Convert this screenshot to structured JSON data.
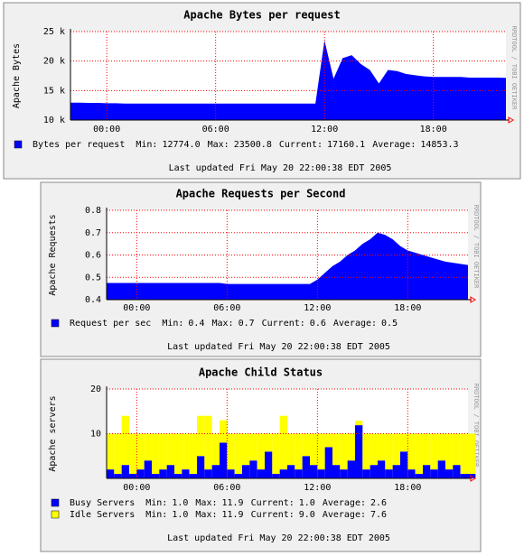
{
  "chart_data": [
    {
      "type": "area",
      "title": "Apache Bytes per request",
      "y_label": "Apache Bytes",
      "watermark": "RRDTOOL / TOBI OETIKER",
      "footer": "Last updated Fri May 20 22:00:38 EDT 2005",
      "x": [
        -2,
        -1.5,
        -1,
        -0.5,
        0,
        0.5,
        1,
        1.5,
        2,
        2.5,
        3,
        3.5,
        4,
        4.5,
        5,
        5.5,
        6,
        6.5,
        7,
        7.5,
        8,
        8.5,
        9,
        9.5,
        10,
        10.5,
        11,
        11.5,
        12,
        12.5,
        13,
        13.5,
        14,
        14.5,
        15,
        15.5,
        16,
        16.5,
        17,
        17.5,
        18,
        18.5,
        19,
        19.5,
        20,
        20.5,
        21,
        21.5,
        22
      ],
      "xlim": [
        -2,
        22
      ],
      "xticks": [
        {
          "value": 0,
          "label": "00:00"
        },
        {
          "value": 6,
          "label": "06:00"
        },
        {
          "value": 12,
          "label": "12:00"
        },
        {
          "value": 18,
          "label": "18:00"
        }
      ],
      "ylim": [
        10000,
        25000
      ],
      "yticks": [
        {
          "value": 10000,
          "label": "10 k"
        },
        {
          "value": 15000,
          "label": "15 k"
        },
        {
          "value": 20000,
          "label": "20 k"
        },
        {
          "value": 25000,
          "label": "25 k"
        }
      ],
      "grid": true,
      "series": [
        {
          "name": "Bytes per request",
          "color": "#0000ff",
          "values": [
            12950,
            12950,
            12900,
            12900,
            12850,
            12850,
            12800,
            12800,
            12800,
            12800,
            12800,
            12800,
            12800,
            12800,
            12800,
            12800,
            12800,
            12800,
            12800,
            12800,
            12800,
            12800,
            12800,
            12800,
            12800,
            12800,
            12800,
            12800,
            23500,
            17000,
            20500,
            21000,
            19500,
            18500,
            16200,
            18500,
            18300,
            17800,
            17600,
            17400,
            17300,
            17300,
            17300,
            17300,
            17200,
            17200,
            17200,
            17200,
            17160
          ],
          "stats": [
            [
              "Min:",
              "12774.0"
            ],
            [
              "Max:",
              "23500.8"
            ],
            [
              "Current:",
              "17160.1"
            ],
            [
              "Average:",
              "14853.3"
            ]
          ]
        }
      ]
    },
    {
      "type": "area",
      "title": "Apache Requests per Second",
      "y_label": "Apache Requests",
      "watermark": "RRDTOOL / TOBI OETIKER",
      "footer": "Last updated Fri May 20 22:00:38 EDT 2005",
      "x": [
        -2,
        -1.5,
        -1,
        -0.5,
        0,
        0.5,
        1,
        1.5,
        2,
        2.5,
        3,
        3.5,
        4,
        4.5,
        5,
        5.5,
        6,
        6.5,
        7,
        7.5,
        8,
        8.5,
        9,
        9.5,
        10,
        10.5,
        11,
        11.5,
        12,
        12.5,
        13,
        13.5,
        14,
        14.5,
        15,
        15.5,
        16,
        16.5,
        17,
        17.5,
        18,
        18.5,
        19,
        19.5,
        20,
        20.5,
        21,
        21.5,
        22
      ],
      "xlim": [
        -2,
        22
      ],
      "xticks": [
        {
          "value": 0,
          "label": "00:00"
        },
        {
          "value": 6,
          "label": "06:00"
        },
        {
          "value": 12,
          "label": "12:00"
        },
        {
          "value": 18,
          "label": "18:00"
        }
      ],
      "ylim": [
        0.4,
        0.8
      ],
      "yticks": [
        0.4,
        0.5,
        0.6,
        0.7,
        0.8
      ],
      "grid": true,
      "series": [
        {
          "name": "Request per sec",
          "color": "#0000ff",
          "values": [
            0.475,
            0.475,
            0.475,
            0.475,
            0.475,
            0.475,
            0.475,
            0.475,
            0.475,
            0.475,
            0.475,
            0.475,
            0.475,
            0.475,
            0.475,
            0.475,
            0.47,
            0.47,
            0.47,
            0.47,
            0.47,
            0.47,
            0.47,
            0.47,
            0.47,
            0.47,
            0.47,
            0.47,
            0.49,
            0.52,
            0.55,
            0.57,
            0.6,
            0.62,
            0.65,
            0.67,
            0.7,
            0.69,
            0.67,
            0.64,
            0.62,
            0.61,
            0.6,
            0.59,
            0.58,
            0.57,
            0.565,
            0.56,
            0.555
          ],
          "stats": [
            [
              "Min:",
              "0.4"
            ],
            [
              "Max:",
              "0.7"
            ],
            [
              "Current:",
              "0.6"
            ],
            [
              "Average:",
              "0.5"
            ]
          ]
        }
      ]
    },
    {
      "type": "stacked_area",
      "title": "Apache Child Status",
      "y_label": "Apache servers",
      "watermark": "RRDTOOL / TOBI OETIKER",
      "footer": "Last updated Fri May 20 22:00:38 EDT 2005",
      "x": [
        -2,
        -1.5,
        -1,
        -0.5,
        0,
        0.5,
        1,
        1.5,
        2,
        2.5,
        3,
        3.5,
        4,
        4.5,
        5,
        5.5,
        6,
        6.5,
        7,
        7.5,
        8,
        8.5,
        9,
        9.5,
        10,
        10.5,
        11,
        11.5,
        12,
        12.5,
        13,
        13.5,
        14,
        14.5,
        15,
        15.5,
        16,
        16.5,
        17,
        17.5,
        18,
        18.5,
        19,
        19.5,
        20,
        20.5,
        21,
        21.5,
        22
      ],
      "xlim": [
        -2,
        22
      ],
      "xticks": [
        {
          "value": 0,
          "label": "00:00"
        },
        {
          "value": 6,
          "label": "06:00"
        },
        {
          "value": 12,
          "label": "12:00"
        },
        {
          "value": 18,
          "label": "18:00"
        }
      ],
      "ylim": [
        0,
        20
      ],
      "yticks": [
        10,
        20
      ],
      "grid": true,
      "series": [
        {
          "name": "Busy Servers",
          "color": "#0000ff",
          "values": [
            2,
            1,
            3,
            1,
            2,
            4,
            1,
            2,
            3,
            1,
            2,
            1,
            5,
            2,
            3,
            8,
            2,
            1,
            3,
            4,
            2,
            6,
            1,
            2,
            3,
            2,
            5,
            3,
            2,
            7,
            3,
            2,
            4,
            11.9,
            2,
            3,
            4,
            2,
            3,
            6,
            2,
            1,
            3,
            2,
            4,
            2,
            3,
            1,
            1
          ],
          "stats": [
            [
              "Min:",
              "1.0"
            ],
            [
              "Max:",
              "11.9"
            ],
            [
              "Current:",
              "1.0"
            ],
            [
              "Average:",
              "2.6"
            ]
          ]
        },
        {
          "name": "Idle Servers",
          "color": "#ffff00",
          "values": [
            8,
            9,
            11,
            9,
            8,
            6,
            9,
            8,
            7,
            9,
            8,
            9,
            9,
            12,
            7,
            5,
            8,
            9,
            7,
            6,
            8,
            4,
            9,
            12,
            7,
            8,
            5,
            7,
            8,
            3,
            7,
            8,
            6,
            1,
            8,
            7,
            6,
            8,
            7,
            4,
            8,
            9,
            7,
            8,
            6,
            8,
            7,
            9,
            9
          ],
          "stats": [
            [
              "Min:",
              "1.0"
            ],
            [
              "Max:",
              "11.9"
            ],
            [
              "Current:",
              "9.0"
            ],
            [
              "Average:",
              "7.6"
            ]
          ]
        }
      ]
    }
  ]
}
